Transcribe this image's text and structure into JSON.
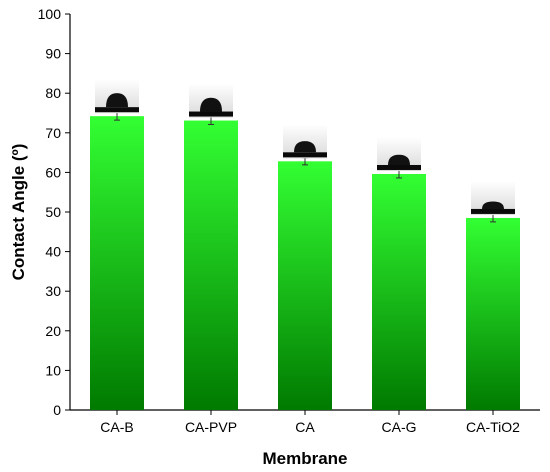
{
  "chart_data": {
    "type": "bar",
    "title": "",
    "xlabel": "Membrane",
    "ylabel": "Contact Angle (º)",
    "categories": [
      "CA-B",
      "CA-PVP",
      "CA",
      "CA-G",
      "CA-TiO2"
    ],
    "values": [
      74.2,
      73.1,
      62.8,
      59.6,
      48.5
    ],
    "errors": [
      1.0,
      1.0,
      0.9,
      1.0,
      1.0
    ],
    "ylim": [
      0,
      100
    ],
    "yticks": [
      0,
      10,
      20,
      30,
      40,
      50,
      60,
      70,
      80,
      90,
      100
    ],
    "grid": false,
    "legend": "none",
    "bar_color_top": "#33ff33",
    "bar_color_bottom": "#007a00",
    "droplet_insets": true
  }
}
